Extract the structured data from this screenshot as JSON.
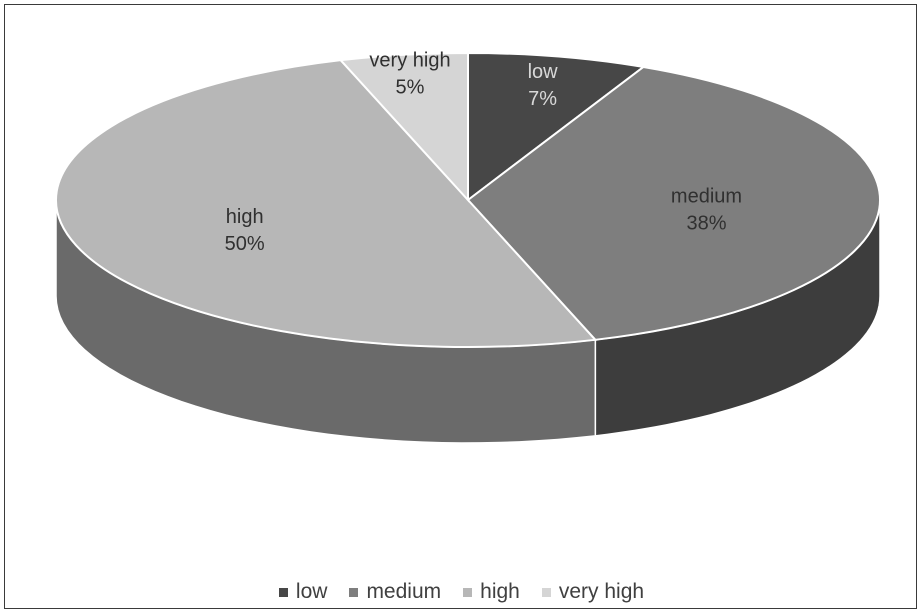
{
  "chart_data": {
    "type": "pie",
    "style": "3d",
    "categories": [
      "low",
      "medium",
      "high",
      "very high"
    ],
    "values": [
      7,
      38,
      50,
      5
    ],
    "value_labels": [
      "7%",
      "38%",
      "50%",
      "5%"
    ],
    "colors": [
      "#474747",
      "#7e7e7e",
      "#b7b7b7",
      "#d5d5d5"
    ],
    "side_colors": [
      "#2b2b2b",
      "#3d3d3d",
      "#6a6a6a",
      "#9a9a9a"
    ],
    "label_colors": [
      "#d8d8d8",
      "#303030",
      "#303030",
      "#303030"
    ],
    "legend_position": "bottom",
    "title": ""
  },
  "legend": {
    "items": [
      {
        "label": "low",
        "color": "#474747"
      },
      {
        "label": "medium",
        "color": "#7e7e7e"
      },
      {
        "label": "high",
        "color": "#b7b7b7"
      },
      {
        "label": "very high",
        "color": "#d5d5d5"
      }
    ]
  }
}
